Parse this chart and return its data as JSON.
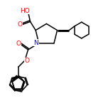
{
  "background_color": "#ffffff",
  "bond_color": "#000000",
  "atom_colors": {
    "O": "#ff0000",
    "N": "#0000ff",
    "C": "#000000"
  },
  "font_size": 6.5,
  "line_width": 1.1,
  "lw_wedge": 2.2
}
